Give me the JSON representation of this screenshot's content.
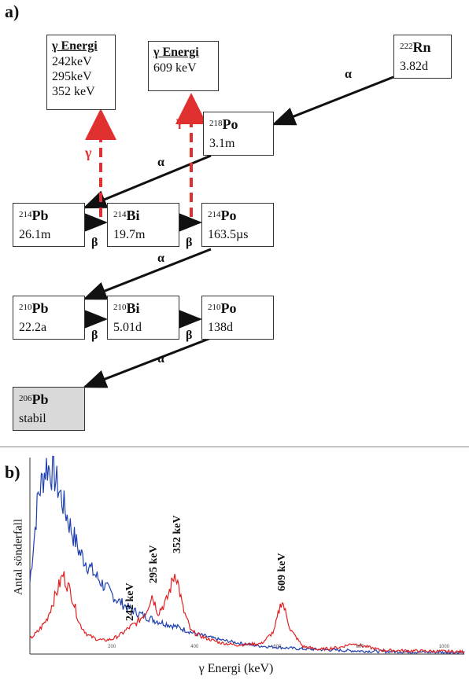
{
  "panels": {
    "a": "a)",
    "b": "b)"
  },
  "nuclides": {
    "rn222": {
      "mass": "222",
      "sym": "Rn",
      "half": "3.82d"
    },
    "po218": {
      "mass": "218",
      "sym": "Po",
      "half": "3.1m"
    },
    "pb214": {
      "mass": "214",
      "sym": "Pb",
      "half": "26.1m"
    },
    "bi214": {
      "mass": "214",
      "sym": "Bi",
      "half": "19.7m"
    },
    "po214": {
      "mass": "214",
      "sym": "Po",
      "half": "163.5µs"
    },
    "pb210": {
      "mass": "210",
      "sym": "Pb",
      "half": "22.2a"
    },
    "bi210": {
      "mass": "210",
      "sym": "Bi",
      "half": "5.01d"
    },
    "po210": {
      "mass": "210",
      "sym": "Po",
      "half": "138d"
    },
    "pb206": {
      "mass": "206",
      "sym": "Pb",
      "half": "stabil"
    }
  },
  "energy_boxes": {
    "bi214": {
      "title": "γ Energi",
      "lines": [
        "242keV",
        "295keV",
        "352 keV"
      ]
    },
    "po214": {
      "title": "γ Energi",
      "lines": [
        "609 keV"
      ]
    }
  },
  "decay_labels": {
    "alpha": "α",
    "beta": "β",
    "gamma": "γ"
  },
  "colors": {
    "gamma": "#e03030",
    "blue_series": "#2040b0",
    "red_series": "#e02020"
  },
  "chart_data": {
    "type": "line",
    "xlabel": "γ Energi (keV)",
    "ylabel": "Antal sönderfall",
    "xticks": [
      "200",
      "400",
      "600",
      "800",
      "1000"
    ],
    "xlim": [
      0,
      1050
    ],
    "peaks": [
      "242 keV",
      "295 keV",
      "352 keV",
      "609 keV"
    ],
    "series": [
      {
        "color": "blue",
        "x": [
          0,
          20,
          40,
          60,
          80,
          100,
          120,
          150,
          180,
          210,
          240,
          270,
          300,
          330,
          360,
          400,
          450,
          500,
          550,
          600,
          650,
          700,
          800,
          900,
          1050
        ],
        "y": [
          95,
          210,
          250,
          235,
          200,
          165,
          135,
          110,
          90,
          72,
          60,
          52,
          45,
          40,
          35,
          27,
          20,
          15,
          11,
          9,
          7,
          6,
          4,
          3,
          2
        ]
      },
      {
        "color": "red",
        "x": [
          0,
          20,
          40,
          60,
          80,
          100,
          120,
          140,
          160,
          180,
          200,
          220,
          240,
          260,
          280,
          295,
          310,
          330,
          352,
          370,
          390,
          420,
          460,
          500,
          560,
          590,
          609,
          630,
          660,
          700,
          750,
          780,
          850,
          950,
          1050
        ],
        "y": [
          20,
          30,
          45,
          75,
          105,
          80,
          40,
          25,
          20,
          18,
          20,
          26,
          35,
          42,
          55,
          78,
          55,
          70,
          110,
          60,
          30,
          22,
          15,
          12,
          14,
          30,
          72,
          32,
          10,
          6,
          9,
          14,
          5,
          4,
          3
        ]
      }
    ],
    "ylim": [
      0,
      260
    ]
  }
}
